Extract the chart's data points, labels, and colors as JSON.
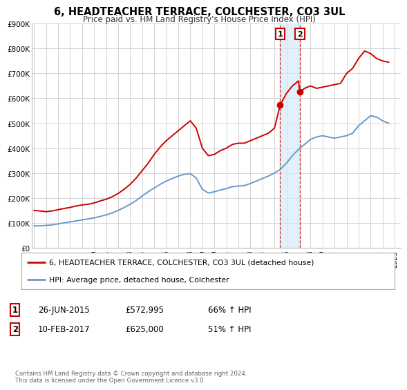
{
  "title": "6, HEADTEACHER TERRACE, COLCHESTER, CO3 3UL",
  "subtitle": "Price paid vs. HM Land Registry's House Price Index (HPI)",
  "background_color": "#ffffff",
  "plot_bg_color": "#ffffff",
  "grid_color": "#cccccc",
  "ylim": [
    0,
    900000
  ],
  "yticks": [
    0,
    100000,
    200000,
    300000,
    400000,
    500000,
    600000,
    700000,
    800000,
    900000
  ],
  "ytick_labels": [
    "£0",
    "£100K",
    "£200K",
    "£300K",
    "£400K",
    "£500K",
    "£600K",
    "£700K",
    "£800K",
    "£900K"
  ],
  "xlim_start": 1994.8,
  "xlim_end": 2025.5,
  "xticks": [
    1995,
    1996,
    1997,
    1998,
    1999,
    2000,
    2001,
    2002,
    2003,
    2004,
    2005,
    2006,
    2007,
    2008,
    2009,
    2010,
    2011,
    2012,
    2013,
    2014,
    2015,
    2016,
    2017,
    2018,
    2019,
    2020,
    2021,
    2022,
    2023,
    2024,
    2025
  ],
  "sale1_x": 2015.48,
  "sale1_y": 572995,
  "sale1_label": "1",
  "sale1_date": "26-JUN-2015",
  "sale1_price": "£572,995",
  "sale1_hpi": "66% ↑ HPI",
  "sale2_x": 2017.12,
  "sale2_y": 625000,
  "sale2_label": "2",
  "sale2_date": "10-FEB-2017",
  "sale2_price": "£625,000",
  "sale2_hpi": "51% ↑ HPI",
  "red_color": "#cc0000",
  "blue_color": "#6699cc",
  "shade_color": "#d6eaf8",
  "legend_label1": "6, HEADTEACHER TERRACE, COLCHESTER, CO3 3UL (detached house)",
  "legend_label2": "HPI: Average price, detached house, Colchester",
  "footnote": "Contains HM Land Registry data © Crown copyright and database right 2024.\nThis data is licensed under the Open Government Licence v3.0.",
  "red_data_x": [
    1995.0,
    1995.5,
    1996.0,
    1996.5,
    1997.0,
    1997.5,
    1998.0,
    1998.5,
    1999.0,
    1999.5,
    2000.0,
    2000.5,
    2001.0,
    2001.5,
    2002.0,
    2002.5,
    2003.0,
    2003.5,
    2004.0,
    2004.5,
    2005.0,
    2005.5,
    2006.0,
    2006.5,
    2007.0,
    2007.5,
    2008.0,
    2008.5,
    2009.0,
    2009.5,
    2010.0,
    2010.5,
    2011.0,
    2011.5,
    2012.0,
    2012.5,
    2013.0,
    2013.5,
    2014.0,
    2014.5,
    2015.0,
    2015.48,
    2016.0,
    2016.5,
    2017.0,
    2017.12,
    2017.5,
    2018.0,
    2018.5,
    2019.0,
    2019.5,
    2020.0,
    2020.5,
    2021.0,
    2021.5,
    2022.0,
    2022.5,
    2023.0,
    2023.5,
    2024.0,
    2024.5
  ],
  "red_data_y": [
    150000,
    148000,
    145000,
    148000,
    153000,
    158000,
    162000,
    168000,
    172000,
    175000,
    180000,
    188000,
    195000,
    205000,
    218000,
    235000,
    255000,
    280000,
    310000,
    340000,
    375000,
    405000,
    430000,
    450000,
    470000,
    490000,
    510000,
    480000,
    400000,
    370000,
    375000,
    390000,
    400000,
    415000,
    420000,
    420000,
    430000,
    440000,
    450000,
    460000,
    480000,
    572995,
    620000,
    650000,
    670000,
    625000,
    640000,
    650000,
    640000,
    645000,
    650000,
    655000,
    660000,
    700000,
    720000,
    760000,
    790000,
    780000,
    760000,
    750000,
    745000
  ],
  "blue_data_x": [
    1995.0,
    1995.5,
    1996.0,
    1996.5,
    1997.0,
    1997.5,
    1998.0,
    1998.5,
    1999.0,
    1999.5,
    2000.0,
    2000.5,
    2001.0,
    2001.5,
    2002.0,
    2002.5,
    2003.0,
    2003.5,
    2004.0,
    2004.5,
    2005.0,
    2005.5,
    2006.0,
    2006.5,
    2007.0,
    2007.5,
    2008.0,
    2008.5,
    2009.0,
    2009.5,
    2010.0,
    2010.5,
    2011.0,
    2011.5,
    2012.0,
    2012.5,
    2013.0,
    2013.5,
    2014.0,
    2014.5,
    2015.0,
    2015.5,
    2016.0,
    2016.5,
    2017.0,
    2017.5,
    2018.0,
    2018.5,
    2019.0,
    2019.5,
    2020.0,
    2020.5,
    2021.0,
    2021.5,
    2022.0,
    2022.5,
    2023.0,
    2023.5,
    2024.0,
    2024.5
  ],
  "blue_data_y": [
    88000,
    88000,
    90000,
    92000,
    96000,
    100000,
    104000,
    108000,
    112000,
    116000,
    120000,
    126000,
    132000,
    140000,
    150000,
    162000,
    175000,
    190000,
    208000,
    225000,
    240000,
    255000,
    268000,
    278000,
    288000,
    295000,
    298000,
    280000,
    235000,
    220000,
    225000,
    232000,
    238000,
    245000,
    248000,
    250000,
    258000,
    268000,
    278000,
    288000,
    300000,
    315000,
    340000,
    370000,
    395000,
    415000,
    435000,
    445000,
    450000,
    445000,
    440000,
    445000,
    450000,
    460000,
    490000,
    510000,
    530000,
    525000,
    510000,
    500000
  ]
}
